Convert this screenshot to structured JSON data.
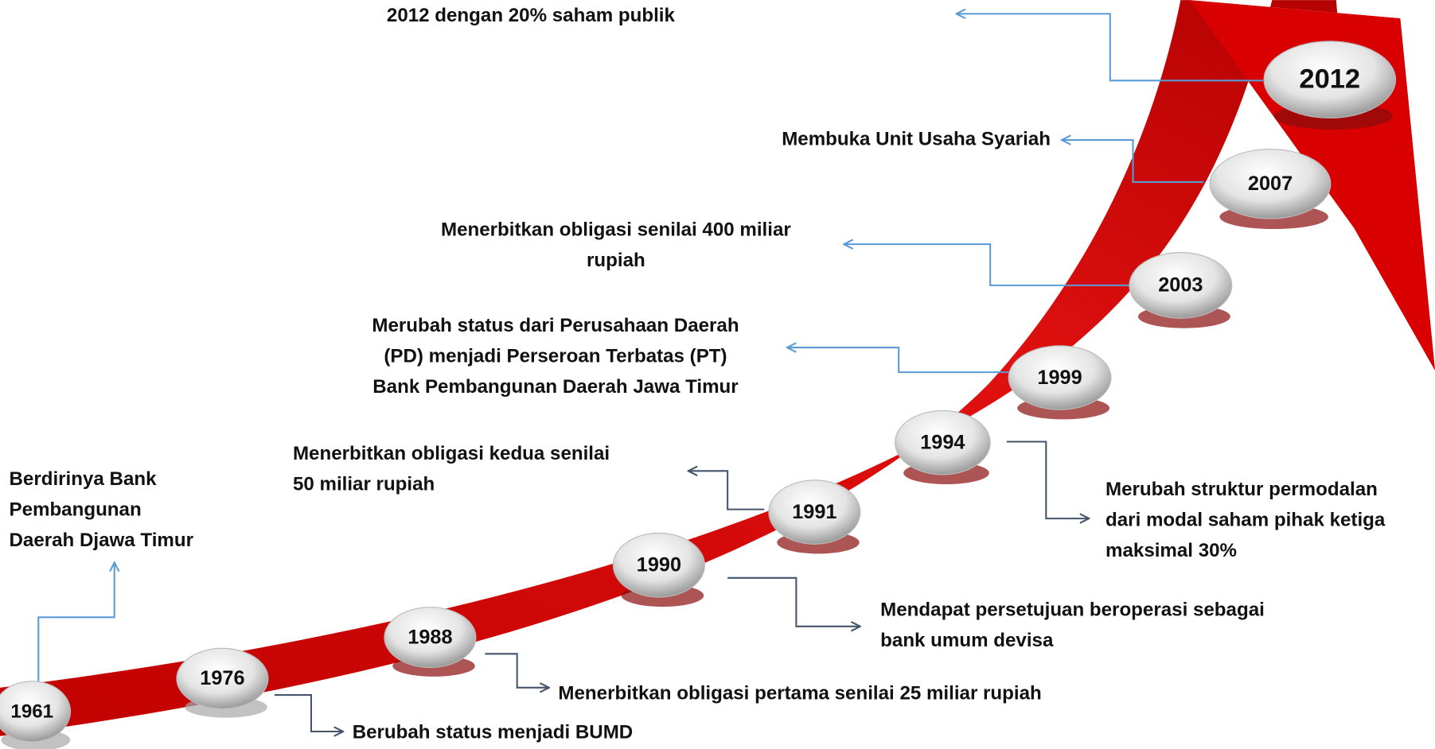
{
  "events": [
    {
      "year": "1961",
      "lines": [
        "Berdirinya Bank",
        "Pembangunan",
        "Daerah Djawa Timur"
      ]
    },
    {
      "year": "1976",
      "lines": [
        "Berubah status menjadi BUMD"
      ]
    },
    {
      "year": "1988",
      "lines": [
        "Menerbitkan obligasi pertama senilai 25 miliar rupiah"
      ]
    },
    {
      "year": "1990",
      "lines": [
        "Mendapat persetujuan beroperasi sebagai",
        "bank umum devisa"
      ]
    },
    {
      "year": "1991",
      "lines": [
        "Menerbitkan obligasi kedua senilai",
        "50 miliar rupiah"
      ]
    },
    {
      "year": "1994",
      "lines": [
        "Merubah struktur permodalan",
        "dari modal saham pihak ketiga",
        "maksimal 30%"
      ]
    },
    {
      "year": "1999",
      "lines": [
        "Merubah status dari Perusahaan Daerah",
        "(PD) menjadi Perseroan Terbatas (PT)",
        "Bank Pembangunan Daerah Jawa Timur"
      ]
    },
    {
      "year": "2003",
      "lines": [
        "Menerbitkan obligasi senilai 400 miliar",
        "rupiah"
      ]
    },
    {
      "year": "2007",
      "lines": [
        "Membuka Unit Usaha Syariah"
      ]
    },
    {
      "year": "2012",
      "lines": [
        "2012 dengan 20% saham publik"
      ]
    }
  ]
}
